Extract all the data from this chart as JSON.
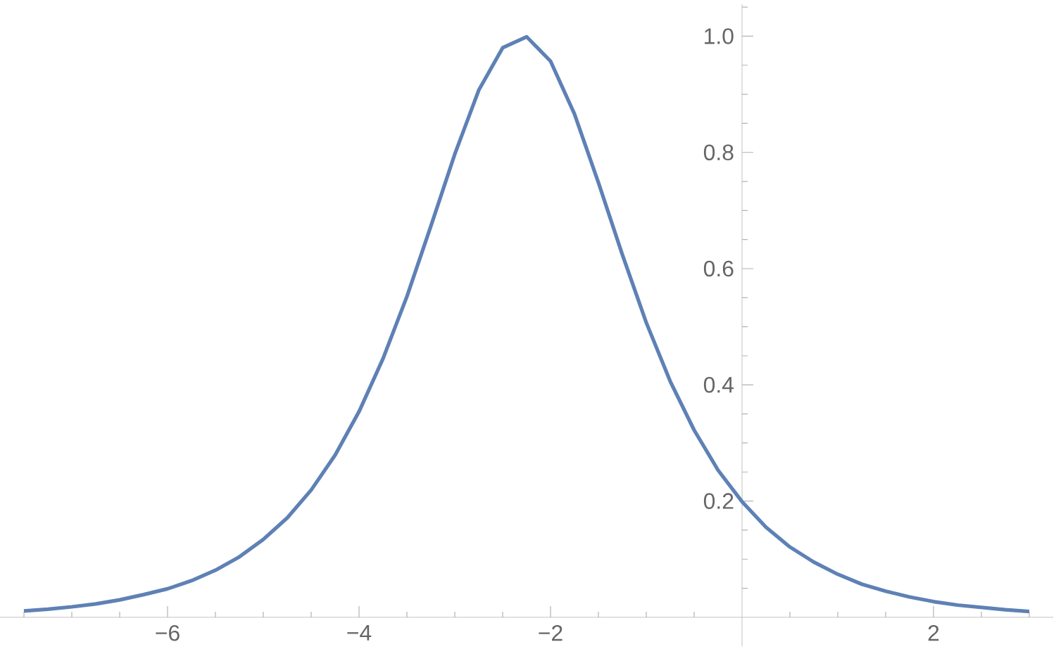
{
  "chart_data": {
    "type": "line",
    "xlim": [
      -7.75,
      3.25
    ],
    "ylim": [
      -0.05,
      1.055
    ],
    "xticks": [
      {
        "value": -7.5,
        "label": null
      },
      {
        "value": -7,
        "label": null
      },
      {
        "value": -6.5,
        "label": null
      },
      {
        "value": -6,
        "label": "−6"
      },
      {
        "value": -5.5,
        "label": null
      },
      {
        "value": -5,
        "label": null
      },
      {
        "value": -4.5,
        "label": null
      },
      {
        "value": -4,
        "label": "−4"
      },
      {
        "value": -3.5,
        "label": null
      },
      {
        "value": -3,
        "label": null
      },
      {
        "value": -2.5,
        "label": null
      },
      {
        "value": -2,
        "label": "−2"
      },
      {
        "value": -1.5,
        "label": null
      },
      {
        "value": -1,
        "label": null
      },
      {
        "value": -0.5,
        "label": null
      },
      {
        "value": 0.5,
        "label": null
      },
      {
        "value": 1,
        "label": null
      },
      {
        "value": 1.5,
        "label": null
      },
      {
        "value": 2,
        "label": "2"
      },
      {
        "value": 2.5,
        "label": null
      },
      {
        "value": 3,
        "label": null
      }
    ],
    "yticks": [
      {
        "value": 0.05,
        "label": null
      },
      {
        "value": 0.1,
        "label": null
      },
      {
        "value": 0.15,
        "label": null
      },
      {
        "value": 0.2,
        "label": "0.2"
      },
      {
        "value": 0.25,
        "label": null
      },
      {
        "value": 0.3,
        "label": null
      },
      {
        "value": 0.35,
        "label": null
      },
      {
        "value": 0.4,
        "label": "0.4"
      },
      {
        "value": 0.45,
        "label": null
      },
      {
        "value": 0.5,
        "label": null
      },
      {
        "value": 0.55,
        "label": null
      },
      {
        "value": 0.6,
        "label": "0.6"
      },
      {
        "value": 0.65,
        "label": null
      },
      {
        "value": 0.7,
        "label": null
      },
      {
        "value": 0.75,
        "label": null
      },
      {
        "value": 0.8,
        "label": "0.8"
      },
      {
        "value": 0.85,
        "label": null
      },
      {
        "value": 0.9,
        "label": null
      },
      {
        "value": 0.95,
        "label": null
      },
      {
        "value": 1,
        "label": "1.0"
      },
      {
        "value": 1.05,
        "label": null
      }
    ],
    "x": [
      -7.5,
      -7.25,
      -7,
      -6.75,
      -6.5,
      -6.25,
      -6,
      -5.75,
      -5.5,
      -5.25,
      -5,
      -4.75,
      -4.5,
      -4.25,
      -4,
      -3.75,
      -3.5,
      -3.25,
      -3,
      -2.75,
      -2.5,
      -2.25,
      -2,
      -1.75,
      -1.5,
      -1.25,
      -1,
      -0.75,
      -0.5,
      -0.25,
      0,
      0.25,
      0.5,
      0.75,
      1,
      1.25,
      1.5,
      1.75,
      2,
      2.25,
      2.5,
      2.75,
      3
    ],
    "series": [
      {
        "color": "#5e81b5",
        "values": [
          0.011,
          0.014,
          0.018,
          0.023,
          0.03,
          0.039,
          0.049,
          0.063,
          0.081,
          0.104,
          0.134,
          0.171,
          0.219,
          0.279,
          0.354,
          0.445,
          0.552,
          0.673,
          0.797,
          0.907,
          0.98,
          0.999,
          0.957,
          0.866,
          0.748,
          0.624,
          0.507,
          0.406,
          0.322,
          0.253,
          0.199,
          0.155,
          0.121,
          0.095,
          0.074,
          0.057,
          0.045,
          0.035,
          0.027,
          0.021,
          0.017,
          0.013,
          0.01
        ]
      }
    ]
  }
}
